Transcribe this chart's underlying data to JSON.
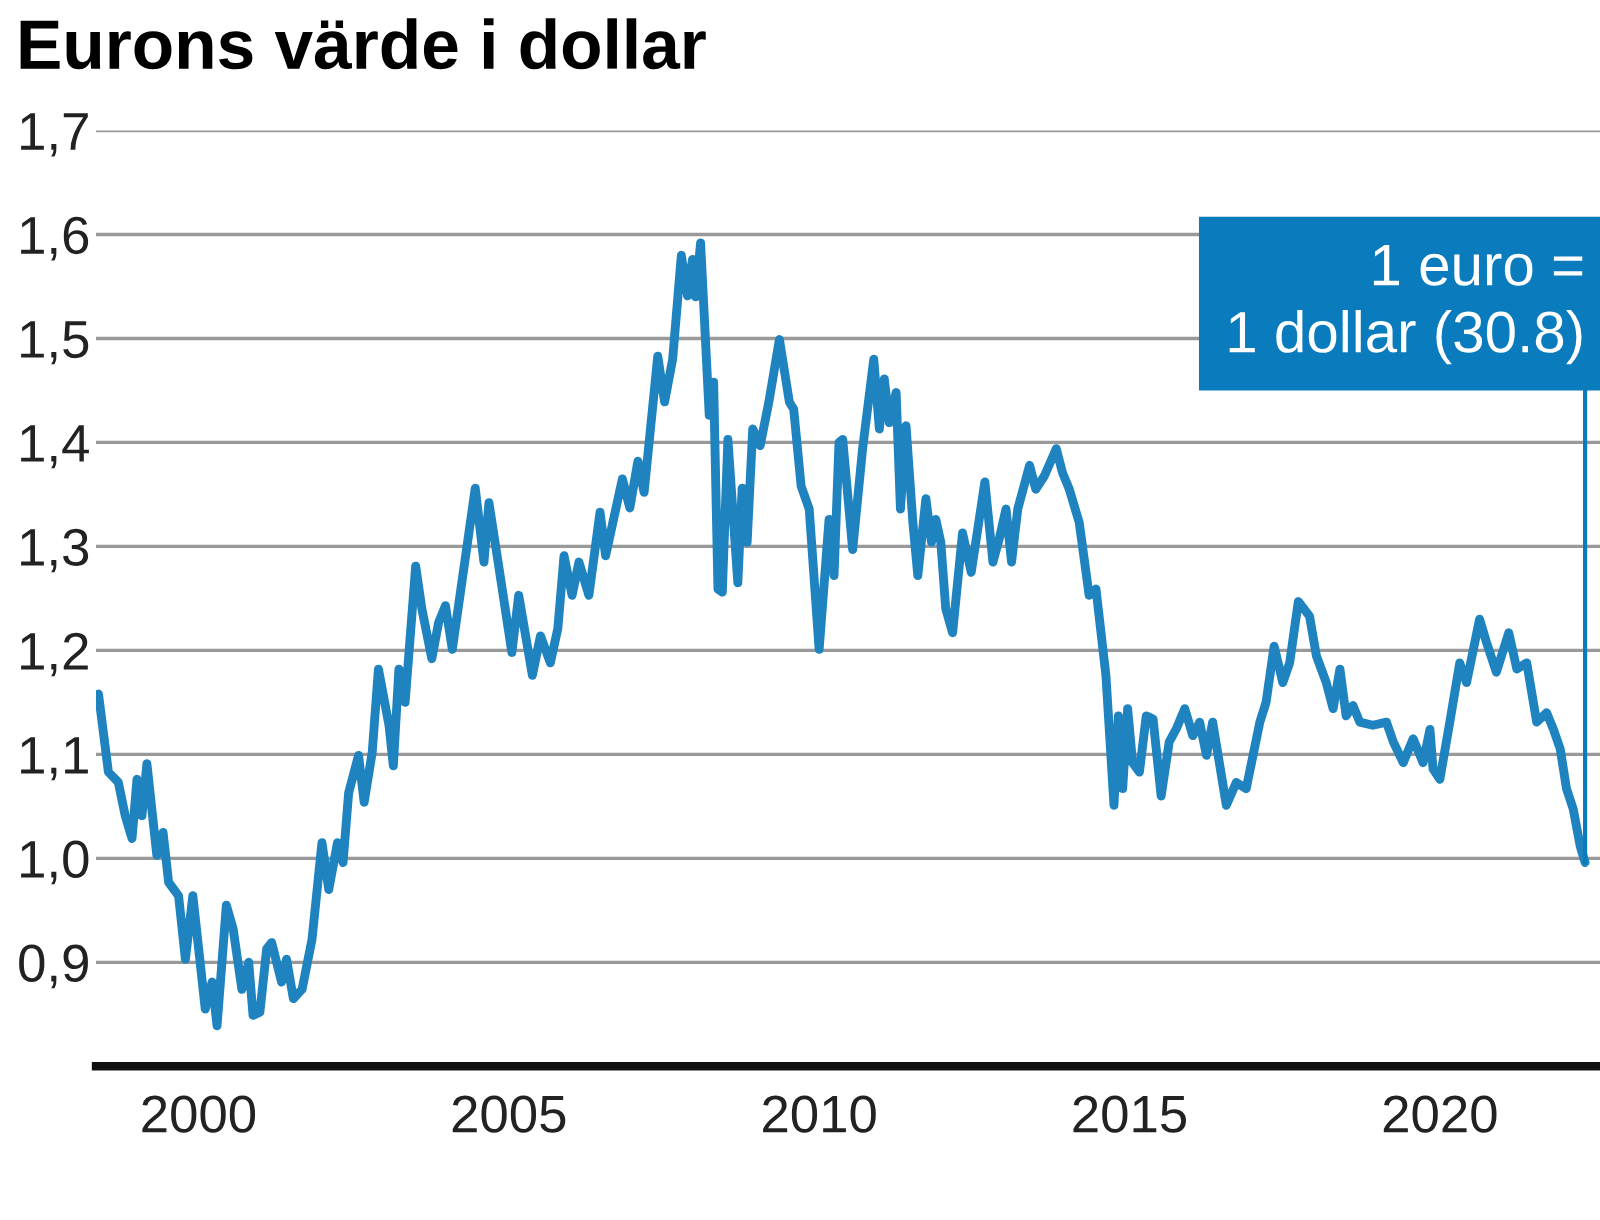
{
  "chart_data": {
    "type": "line",
    "title": "Eurons värde i dollar",
    "x": [
      1998.89,
      1999.05,
      1999.21,
      1999.32,
      1999.43,
      1999.51,
      1999.59,
      1999.67,
      1999.83,
      1999.93,
      2000.02,
      2000.18,
      2000.29,
      2000.41,
      2000.61,
      2000.72,
      2000.8,
      2000.95,
      2001.06,
      2001.2,
      2001.31,
      2001.38,
      2001.49,
      2001.6,
      2001.68,
      2001.84,
      2001.92,
      2002.03,
      2002.17,
      2002.33,
      2002.49,
      2002.6,
      2002.74,
      2002.83,
      2002.92,
      2003.08,
      2003.17,
      2003.3,
      2003.4,
      2003.57,
      2003.64,
      2003.73,
      2003.83,
      2004.0,
      2004.1,
      2004.26,
      2004.37,
      2004.48,
      2004.59,
      2004.96,
      2005.1,
      2005.18,
      2005.32,
      2005.55,
      2005.66,
      2005.88,
      2006.01,
      2006.17,
      2006.29,
      2006.39,
      2006.52,
      2006.63,
      2006.79,
      2006.97,
      2007.06,
      2007.33,
      2007.45,
      2007.58,
      2007.68,
      2007.9,
      2008.01,
      2008.14,
      2008.28,
      2008.38,
      2008.46,
      2008.51,
      2008.59,
      2008.73,
      2008.8,
      2008.87,
      2008.94,
      2009.03,
      2009.19,
      2009.26,
      2009.34,
      2009.43,
      2009.55,
      2009.69,
      2009.86,
      2010.02,
      2010.09,
      2010.21,
      2010.34,
      2010.5,
      2010.66,
      2010.74,
      2010.82,
      2010.88,
      2011.04,
      2011.2,
      2011.38,
      2011.47,
      2011.55,
      2011.63,
      2011.74,
      2011.81,
      2011.9,
      2012.01,
      2012.09,
      2012.22,
      2012.31,
      2012.38,
      2012.46,
      2012.54,
      2012.65,
      2012.81,
      2012.95,
      2013.17,
      2013.3,
      2013.4,
      2013.51,
      2013.6,
      2013.7,
      2013.89,
      2013.99,
      2014.13,
      2014.32,
      2014.42,
      2014.53,
      2014.69,
      2014.85,
      2014.96,
      2015.12,
      2015.25,
      2015.32,
      2015.39,
      2015.47,
      2015.55,
      2015.66,
      2015.77,
      2015.88,
      2016.01,
      2016.14,
      2016.25,
      2016.39,
      2016.52,
      2016.63,
      2016.74,
      2016.84,
      2017.06,
      2017.22,
      2017.38,
      2017.6,
      2017.7,
      2017.83,
      2017.97,
      2018.08,
      2018.22,
      2018.4,
      2018.51,
      2018.67,
      2018.78,
      2018.89,
      2018.99,
      2019.1,
      2019.21,
      2019.42,
      2019.64,
      2019.75,
      2019.91,
      2020.07,
      2020.23,
      2020.34,
      2020.39,
      2020.5,
      2020.66,
      2020.82,
      2020.93,
      2021.14,
      2021.25,
      2021.41,
      2021.61,
      2021.74,
      2021.9,
      2022.06,
      2022.22,
      2022.33,
      2022.44,
      2022.54,
      2022.65,
      2022.76,
      2022.84
    ],
    "series": [
      {
        "color": "#1f83c0",
        "values": [
          1.158,
          1.083,
          1.073,
          1.041,
          1.019,
          1.076,
          1.041,
          1.091,
          1.003,
          1.025,
          0.977,
          0.964,
          0.903,
          0.964,
          0.855,
          0.881,
          0.839,
          0.955,
          0.932,
          0.874,
          0.9,
          0.849,
          0.852,
          0.913,
          0.919,
          0.881,
          0.903,
          0.865,
          0.874,
          0.922,
          1.015,
          0.97,
          1.015,
          0.996,
          1.063,
          1.099,
          1.054,
          1.102,
          1.182,
          1.128,
          1.089,
          1.182,
          1.15,
          1.281,
          1.24,
          1.192,
          1.227,
          1.243,
          1.201,
          1.356,
          1.285,
          1.342,
          1.288,
          1.198,
          1.253,
          1.176,
          1.214,
          1.188,
          1.221,
          1.291,
          1.253,
          1.285,
          1.253,
          1.333,
          1.291,
          1.365,
          1.337,
          1.382,
          1.352,
          1.483,
          1.439,
          1.48,
          1.58,
          1.541,
          1.576,
          1.54,
          1.592,
          1.426,
          1.458,
          1.259,
          1.256,
          1.403,
          1.265,
          1.356,
          1.304,
          1.413,
          1.397,
          1.439,
          1.499,
          1.439,
          1.432,
          1.358,
          1.336,
          1.201,
          1.326,
          1.272,
          1.4,
          1.403,
          1.297,
          1.394,
          1.48,
          1.413,
          1.461,
          1.419,
          1.448,
          1.336,
          1.416,
          1.323,
          1.272,
          1.346,
          1.304,
          1.326,
          1.304,
          1.24,
          1.217,
          1.313,
          1.275,
          1.362,
          1.285,
          1.307,
          1.336,
          1.285,
          1.336,
          1.378,
          1.355,
          1.368,
          1.394,
          1.371,
          1.355,
          1.323,
          1.253,
          1.259,
          1.176,
          1.051,
          1.137,
          1.067,
          1.144,
          1.092,
          1.083,
          1.137,
          1.134,
          1.06,
          1.112,
          1.124,
          1.144,
          1.118,
          1.131,
          1.099,
          1.131,
          1.051,
          1.073,
          1.067,
          1.131,
          1.15,
          1.204,
          1.169,
          1.188,
          1.247,
          1.233,
          1.195,
          1.169,
          1.144,
          1.182,
          1.137,
          1.147,
          1.131,
          1.128,
          1.131,
          1.112,
          1.092,
          1.115,
          1.092,
          1.124,
          1.086,
          1.076,
          1.131,
          1.188,
          1.169,
          1.23,
          1.208,
          1.179,
          1.217,
          1.182,
          1.188,
          1.131,
          1.14,
          1.124,
          1.105,
          1.067,
          1.047,
          1.012,
          0.996
        ]
      }
    ],
    "xlim": [
      1998.85,
      2023.08
    ],
    "ylim": [
      0.8,
      1.7
    ],
    "xticks": [
      {
        "value": 2000.5,
        "label": "2000"
      },
      {
        "value": 2005.5,
        "label": "2005"
      },
      {
        "value": 2010.5,
        "label": "2010"
      },
      {
        "value": 2015.5,
        "label": "2015"
      },
      {
        "value": 2020.5,
        "label": "2020"
      }
    ],
    "yticks": [
      {
        "value": 0.8,
        "label": null
      },
      {
        "value": 0.9,
        "label": "0,9"
      },
      {
        "value": 1.0,
        "label": "1,0"
      },
      {
        "value": 1.1,
        "label": "1,1"
      },
      {
        "value": 1.2,
        "label": "1,2"
      },
      {
        "value": 1.3,
        "label": "1,3"
      },
      {
        "value": 1.4,
        "label": "1,4"
      },
      {
        "value": 1.5,
        "label": "1,5"
      },
      {
        "value": 1.6,
        "label": "1,6"
      },
      {
        "value": 1.7,
        "label": "1,7"
      }
    ],
    "grid": "y",
    "annotations": [
      {
        "text": "1 euro =\n1 dollar (30.8)",
        "x": 2022.84,
        "y": 0.996
      }
    ]
  }
}
